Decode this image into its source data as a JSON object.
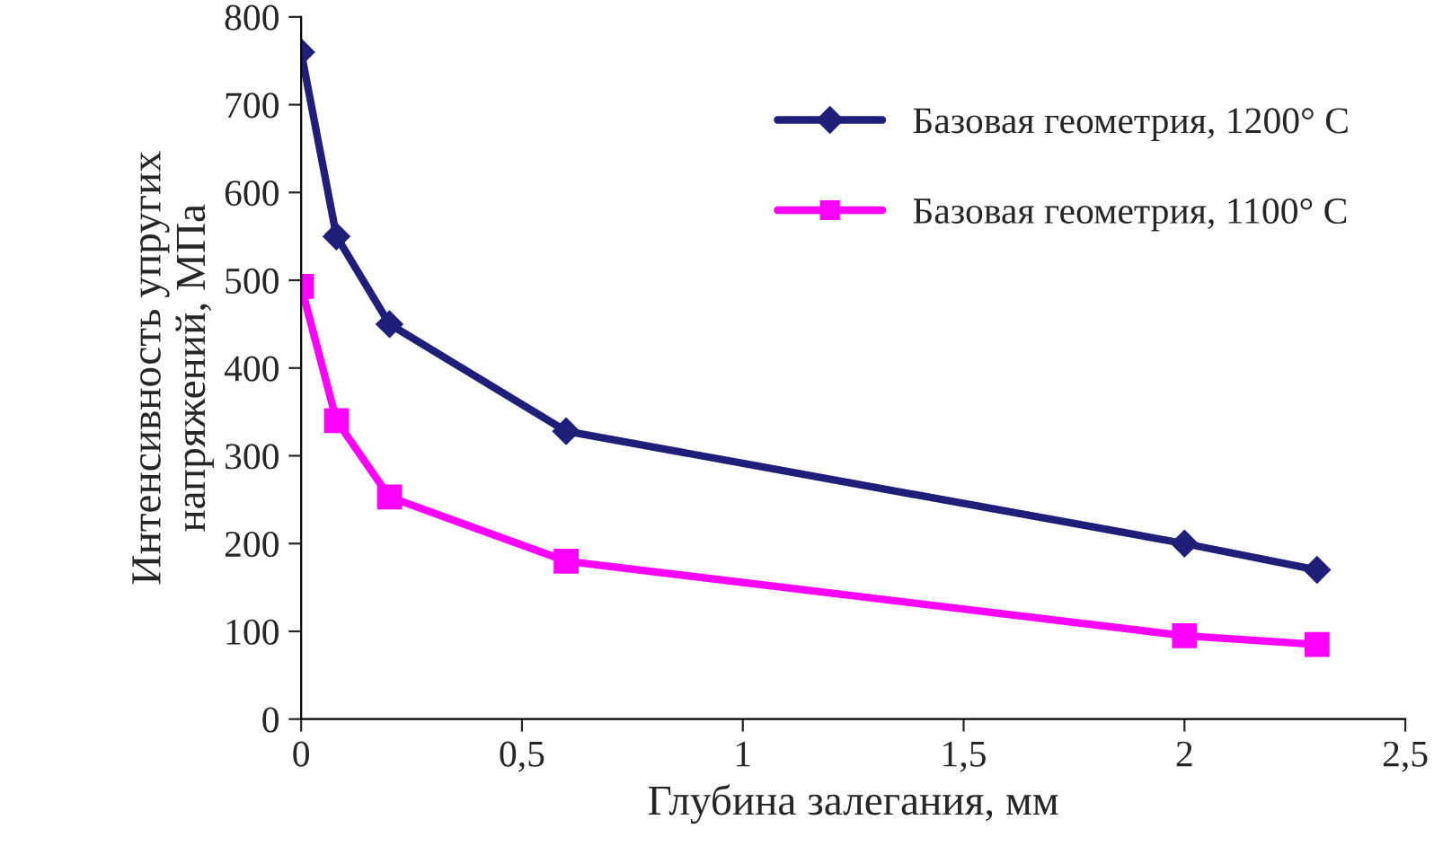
{
  "chart_data": {
    "type": "line",
    "xlabel": "Глубина залегания, мм",
    "ylabel": "Интенсивность упругих\nнапряжений, МПа",
    "series": [
      {
        "name": "Базовая геометрия, 1200° С",
        "color": "#1f1f7a",
        "marker": "diamond",
        "x": [
          0,
          0.08,
          0.2,
          0.6,
          2,
          2.3
        ],
        "values": [
          760,
          550,
          450,
          328,
          200,
          170
        ]
      },
      {
        "name": "Базовая геометрия, 1100° С",
        "color": "#ff00ff",
        "marker": "square",
        "x": [
          0,
          0.08,
          0.2,
          0.6,
          2,
          2.3
        ],
        "values": [
          493,
          340,
          253,
          180,
          95,
          85
        ]
      }
    ],
    "xlim": [
      0,
      2.5
    ],
    "xticks": [
      0,
      {
        "value": 0.5,
        "label": "0,5"
      },
      1,
      {
        "value": 1.5,
        "label": "1,5"
      },
      2,
      {
        "value": 2.5,
        "label": "2,5"
      }
    ],
    "ylim": [
      0,
      800
    ],
    "yticks": [
      0,
      100,
      200,
      300,
      400,
      500,
      600,
      700,
      800
    ],
    "grid": false,
    "legend": "top right",
    "line_style": "solid"
  }
}
